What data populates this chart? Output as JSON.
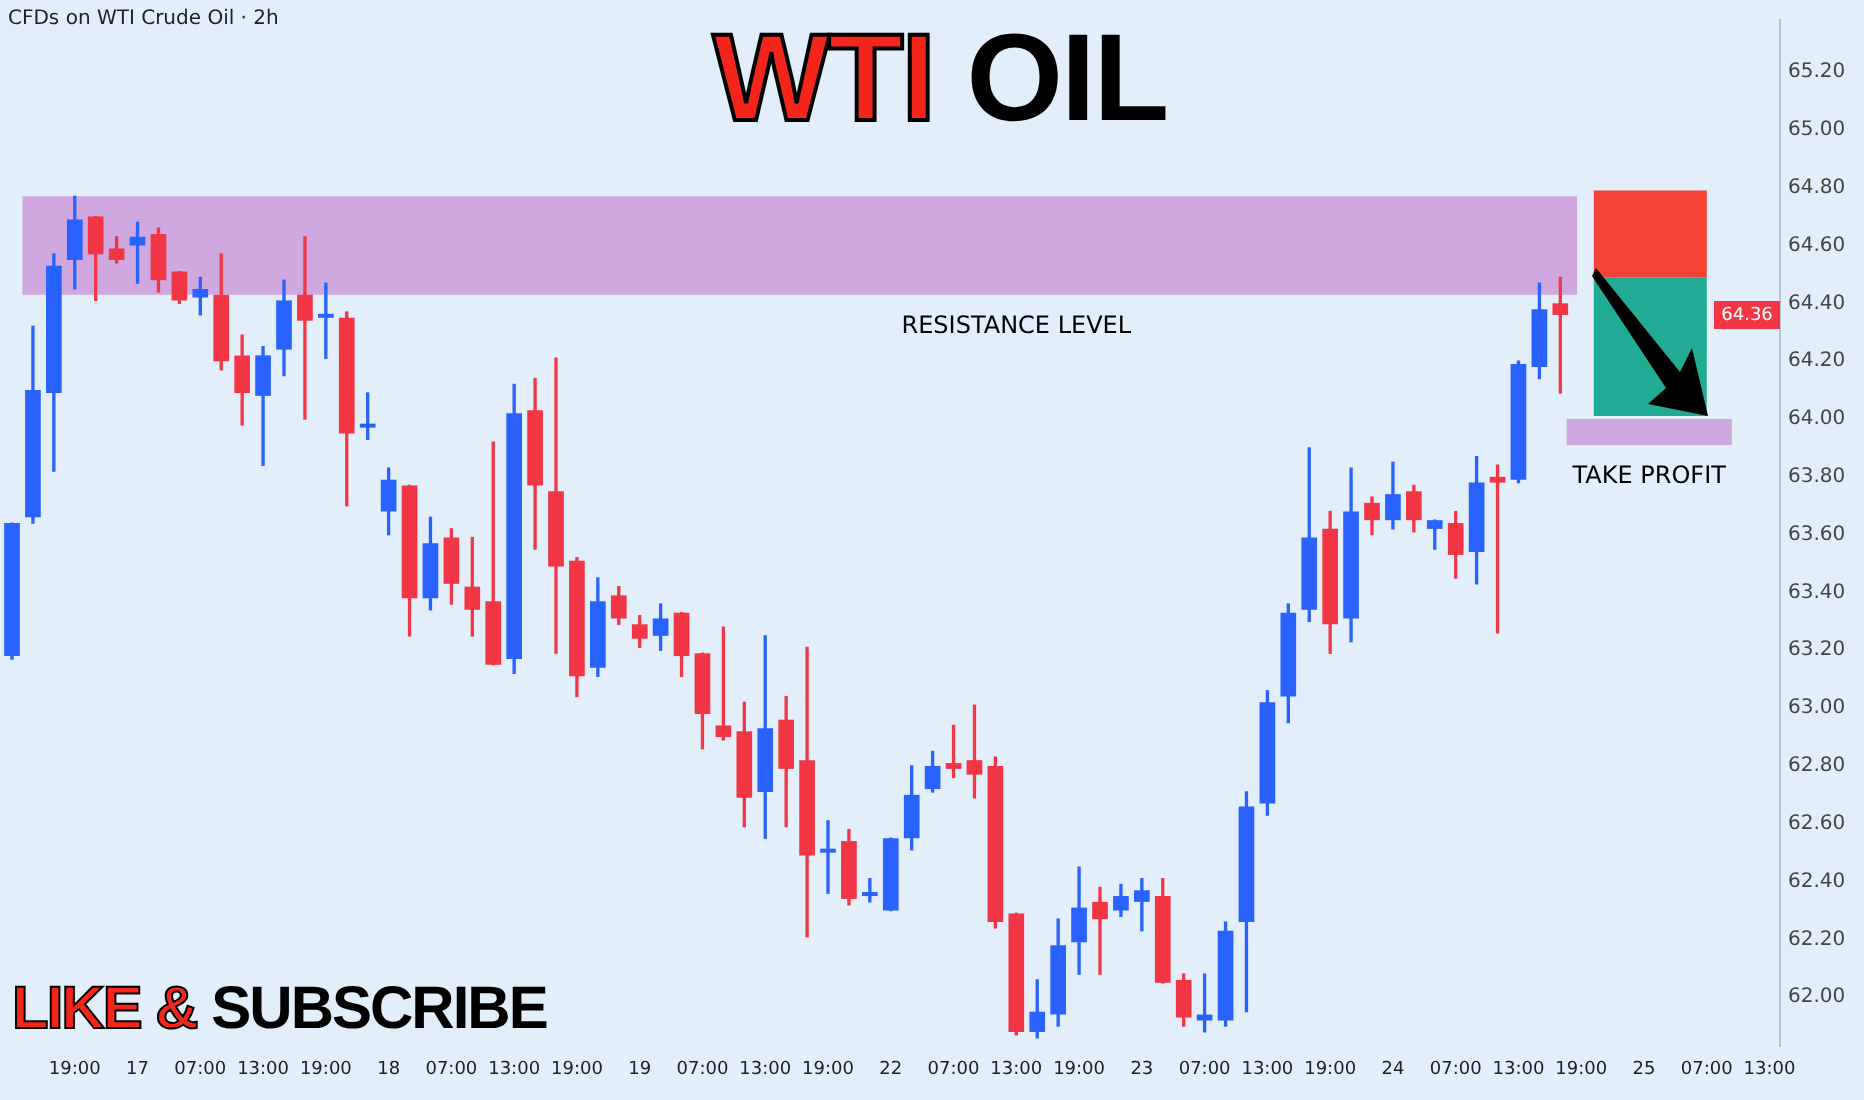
{
  "chart_data": {
    "type": "candlestick",
    "title": "WTI OIL",
    "subtitle": "CFDs on WTI Crude Oil · 2h",
    "categories": [
      null,
      null,
      null,
      "19:00",
      null,
      null,
      "17",
      null,
      null,
      "07:00",
      null,
      null,
      "13:00",
      null,
      null,
      "19:00",
      null,
      null,
      "18",
      null,
      null,
      "07:00",
      null,
      null,
      "13:00",
      null,
      null,
      "19:00",
      null,
      null,
      "19",
      null,
      null,
      "07:00",
      null,
      null,
      "13:00",
      null,
      null,
      "19:00",
      null,
      null,
      "22",
      null,
      null,
      "07:00",
      null,
      null,
      "13:00",
      null,
      null,
      "19:00",
      null,
      null,
      "23",
      null,
      null,
      "07:00",
      null,
      null,
      "13:00",
      null,
      null,
      "19:00",
      null,
      null,
      "24",
      null,
      null,
      "07:00",
      null,
      null,
      "13:00",
      null,
      null,
      "19:00",
      null,
      null,
      "25",
      null,
      null,
      "07:00",
      null,
      null,
      "13:00"
    ],
    "ohlc": [
      [
        63.18,
        63.64,
        63.17,
        63.64
      ],
      [
        63.66,
        64.32,
        63.64,
        64.1
      ],
      [
        64.09,
        64.57,
        63.82,
        64.53
      ],
      [
        64.55,
        64.77,
        64.45,
        64.69
      ],
      [
        64.7,
        64.7,
        64.41,
        64.57
      ],
      [
        64.59,
        64.63,
        64.54,
        64.55
      ],
      [
        64.6,
        64.68,
        64.47,
        64.63
      ],
      [
        64.64,
        64.66,
        64.44,
        64.48
      ],
      [
        64.51,
        64.51,
        64.4,
        64.41
      ],
      [
        64.42,
        64.49,
        64.36,
        64.45
      ],
      [
        64.43,
        64.57,
        64.17,
        64.2
      ],
      [
        64.22,
        64.29,
        63.98,
        64.09
      ],
      [
        64.08,
        64.25,
        63.84,
        64.22
      ],
      [
        64.24,
        64.48,
        64.15,
        64.41
      ],
      [
        64.43,
        64.63,
        64.0,
        64.34
      ],
      [
        64.35,
        64.47,
        64.21,
        64.35
      ],
      [
        64.35,
        64.37,
        63.7,
        63.95
      ],
      [
        63.97,
        64.09,
        63.93,
        63.97
      ],
      [
        63.68,
        63.83,
        63.6,
        63.79
      ],
      [
        63.77,
        63.77,
        63.25,
        63.38
      ],
      [
        63.38,
        63.66,
        63.34,
        63.57
      ],
      [
        63.59,
        63.62,
        63.36,
        63.43
      ],
      [
        63.42,
        63.59,
        63.25,
        63.34
      ],
      [
        63.37,
        63.92,
        63.15,
        63.15
      ],
      [
        63.17,
        64.12,
        63.12,
        64.02
      ],
      [
        64.03,
        64.14,
        63.55,
        63.77
      ],
      [
        63.75,
        64.21,
        63.19,
        63.49
      ],
      [
        63.51,
        63.52,
        63.04,
        63.11
      ],
      [
        63.14,
        63.45,
        63.11,
        63.37
      ],
      [
        63.39,
        63.42,
        63.29,
        63.31
      ],
      [
        63.29,
        63.32,
        63.21,
        63.24
      ],
      [
        63.25,
        63.36,
        63.2,
        63.31
      ],
      [
        63.33,
        63.33,
        63.11,
        63.18
      ],
      [
        63.19,
        63.19,
        62.86,
        62.98
      ],
      [
        62.94,
        63.28,
        62.89,
        62.9
      ],
      [
        62.92,
        63.02,
        62.59,
        62.69
      ],
      [
        62.71,
        63.25,
        62.55,
        62.93
      ],
      [
        62.96,
        63.04,
        62.59,
        62.79
      ],
      [
        62.82,
        63.21,
        62.21,
        62.49
      ],
      [
        62.5,
        62.61,
        62.36,
        62.51
      ],
      [
        62.54,
        62.58,
        62.32,
        62.34
      ],
      [
        62.35,
        62.41,
        62.33,
        62.36
      ],
      [
        62.3,
        62.55,
        62.3,
        62.55
      ],
      [
        62.55,
        62.8,
        62.51,
        62.7
      ],
      [
        62.72,
        62.85,
        62.71,
        62.8
      ],
      [
        62.81,
        62.94,
        62.76,
        62.79
      ],
      [
        62.82,
        63.01,
        62.69,
        62.77
      ],
      [
        62.8,
        62.83,
        62.24,
        62.26
      ],
      [
        62.29,
        62.29,
        61.87,
        61.88
      ],
      [
        61.88,
        62.06,
        61.86,
        61.95
      ],
      [
        61.94,
        62.27,
        61.9,
        62.18
      ],
      [
        62.19,
        62.45,
        62.08,
        62.31
      ],
      [
        62.33,
        62.38,
        62.08,
        62.27
      ],
      [
        62.3,
        62.39,
        62.28,
        62.35
      ],
      [
        62.33,
        62.41,
        62.23,
        62.37
      ],
      [
        62.35,
        62.41,
        62.05,
        62.05
      ],
      [
        62.06,
        62.08,
        61.9,
        61.93
      ],
      [
        61.92,
        62.08,
        61.88,
        61.94
      ],
      [
        61.92,
        62.26,
        61.9,
        62.23
      ],
      [
        62.26,
        62.71,
        61.95,
        62.66
      ],
      [
        62.67,
        63.06,
        62.63,
        63.02
      ],
      [
        63.04,
        63.36,
        62.95,
        63.33
      ],
      [
        63.34,
        63.9,
        63.3,
        63.59
      ],
      [
        63.62,
        63.68,
        63.19,
        63.29
      ],
      [
        63.31,
        63.83,
        63.23,
        63.68
      ],
      [
        63.71,
        63.73,
        63.6,
        63.65
      ],
      [
        63.65,
        63.85,
        63.62,
        63.74
      ],
      [
        63.75,
        63.77,
        63.61,
        63.65
      ],
      [
        63.62,
        63.65,
        63.55,
        63.65
      ],
      [
        63.64,
        63.68,
        63.45,
        63.53
      ],
      [
        63.54,
        63.87,
        63.43,
        63.78
      ],
      [
        63.8,
        63.84,
        63.26,
        63.78
      ],
      [
        63.79,
        64.2,
        63.78,
        64.19
      ],
      [
        64.18,
        64.47,
        64.14,
        64.38
      ],
      [
        64.4,
        64.49,
        64.09,
        64.36
      ],
      null,
      null,
      null,
      null,
      null,
      null,
      null,
      null,
      null,
      null
    ],
    "colors": [
      "#2962ff",
      "#2962ff",
      "#2962ff",
      "#2962ff",
      "#f23645",
      "#f23645",
      "#2962ff",
      "#f23645",
      "#f23645",
      "#2962ff",
      "#f23645",
      "#f23645",
      "#2962ff",
      "#2962ff",
      "#f23645",
      "#2962ff",
      "#f23645",
      "#2962ff",
      "#2962ff",
      "#f23645",
      "#2962ff",
      "#f23645",
      "#f23645",
      "#f23645",
      "#2962ff",
      "#f23645",
      "#f23645",
      "#f23645",
      "#2962ff",
      "#f23645",
      "#f23645",
      "#2962ff",
      "#f23645",
      "#f23645",
      "#f23645",
      "#f23645",
      "#2962ff",
      "#f23645",
      "#f23645",
      "#2962ff",
      "#f23645",
      "#2962ff",
      "#2962ff",
      "#2962ff",
      "#2962ff",
      "#f23645",
      "#f23645",
      "#f23645",
      "#f23645",
      "#2962ff",
      "#2962ff",
      "#2962ff",
      "#f23645",
      "#2962ff",
      "#2962ff",
      "#f23645",
      "#f23645",
      "#2962ff",
      "#2962ff",
      "#2962ff",
      "#2962ff",
      "#2962ff",
      "#2962ff",
      "#f23645",
      "#2962ff",
      "#f23645",
      "#2962ff",
      "#f23645",
      "#2962ff",
      "#f23645",
      "#2962ff",
      "#f23645",
      "#2962ff",
      "#2962ff",
      "#f23645",
      null,
      null,
      null,
      null,
      null,
      null,
      null,
      null,
      null,
      null
    ],
    "ylim": [
      61.83,
      65.38
    ],
    "yticks": [
      {
        "value": 62,
        "label": "62.00"
      },
      {
        "value": 62.2,
        "label": "62.20"
      },
      {
        "value": 62.4,
        "label": "62.40"
      },
      {
        "value": 62.6,
        "label": "62.60"
      },
      {
        "value": 62.8,
        "label": "62.80"
      },
      {
        "value": 63,
        "label": "63.00"
      },
      {
        "value": 63.2,
        "label": "63.20"
      },
      {
        "value": 63.4,
        "label": "63.40"
      },
      {
        "value": 63.6,
        "label": "63.60"
      },
      {
        "value": 63.8,
        "label": "63.80"
      },
      {
        "value": 64,
        "label": "64.00"
      },
      {
        "value": 64.2,
        "label": "64.20"
      },
      {
        "value": 64.4,
        "label": "64.40"
      },
      {
        "value": 64.6,
        "label": "64.60"
      },
      {
        "value": 64.8,
        "label": "64.80"
      },
      {
        "value": 65,
        "label": "65.00"
      },
      {
        "value": 65.2,
        "label": "65.20"
      }
    ],
    "bands": [
      {
        "axis": "y",
        "from": 64.43,
        "to": 64.77,
        "label": "RESISTANCE LEVEL",
        "color": "#cfa8e0"
      },
      {
        "axis": "y",
        "from": 63.91,
        "to": 64.0,
        "label": "TAKE PROFIT",
        "color": "#cfa8e0"
      },
      {
        "axis": "y",
        "from": 64.49,
        "to": 64.79,
        "color": "#f44336"
      },
      {
        "axis": "y",
        "from": 64.01,
        "to": 64.49,
        "color": "#22ab94"
      }
    ],
    "annotations": [
      {
        "text": "64.36",
        "y": 64.36
      },
      "LIKE & SUBSCRIBE"
    ]
  }
}
